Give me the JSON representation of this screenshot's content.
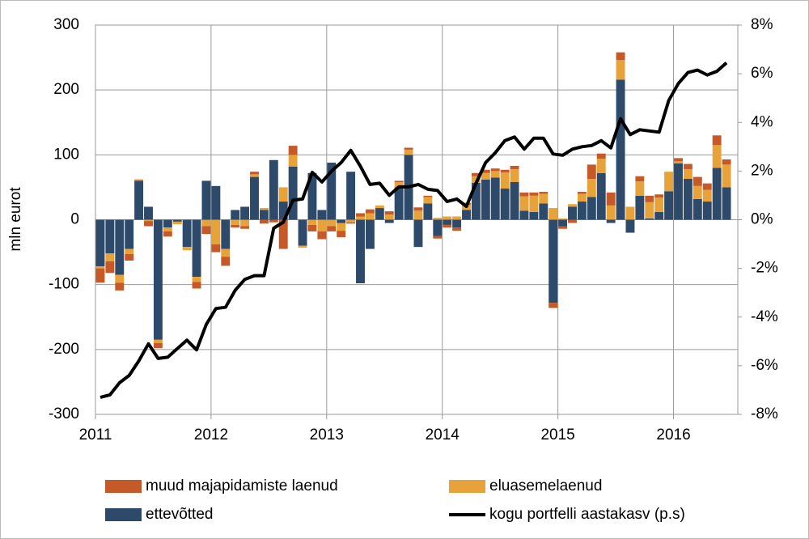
{
  "chart_data": {
    "type": "bar_line",
    "ylabel": "mln eurot",
    "categories": [
      "2011",
      null,
      null,
      null,
      null,
      null,
      null,
      null,
      null,
      null,
      null,
      null,
      "2012",
      null,
      null,
      null,
      null,
      null,
      null,
      null,
      null,
      null,
      null,
      null,
      "2013",
      null,
      null,
      null,
      null,
      null,
      null,
      null,
      null,
      null,
      null,
      null,
      "2014",
      null,
      null,
      null,
      null,
      null,
      null,
      null,
      null,
      null,
      null,
      null,
      "2015",
      null,
      null,
      null,
      null,
      null,
      null,
      null,
      null,
      null,
      null,
      null,
      "2016",
      null,
      null,
      null,
      null,
      null
    ],
    "ylim": [
      -300,
      300
    ],
    "yticks": [
      -300,
      -200,
      -100,
      0,
      100,
      200,
      300
    ],
    "y2lim": [
      -8,
      8
    ],
    "y2ticks": [
      {
        "value": -8,
        "label": "-8%"
      },
      {
        "value": -6,
        "label": "-6%"
      },
      {
        "value": -4,
        "label": "-4%"
      },
      {
        "value": -2,
        "label": "-2%"
      },
      {
        "value": 0,
        "label": "0%"
      },
      {
        "value": 2,
        "label": "2%"
      },
      {
        "value": 4,
        "label": "4%"
      },
      {
        "value": 6,
        "label": "6%"
      },
      {
        "value": 8,
        "label": "8%"
      }
    ],
    "grid": true,
    "legend": "bottom",
    "series": [
      {
        "name": "muud majapidamiste laenud",
        "color": "#c55a28",
        "kind": "bar",
        "values": [
          -22,
          -18,
          -12,
          -10,
          1,
          -8,
          -8,
          -8,
          0,
          0,
          -10,
          -12,
          -12,
          -14,
          -4,
          -4,
          4,
          -6,
          -4,
          -45,
          14,
          0,
          -10,
          -12,
          -8,
          -10,
          -2,
          5,
          6,
          0,
          5,
          2,
          3,
          5,
          2,
          -4,
          -4,
          -5,
          3,
          5,
          5,
          4,
          4,
          5,
          6,
          5,
          3,
          -8,
          -4,
          -5,
          3,
          22,
          8,
          20,
          12,
          0,
          8,
          10,
          5,
          0,
          5,
          8,
          14,
          10,
          15,
          8
        ]
      },
      {
        "name": "eluasemelaenud",
        "color": "#e8a23a",
        "kind": "bar",
        "values": [
          -3,
          -12,
          -12,
          -8,
          1,
          -2,
          -5,
          -6,
          -4,
          -5,
          -8,
          -10,
          -38,
          -12,
          -8,
          -10,
          4,
          3,
          0,
          22,
          18,
          -3,
          -8,
          -18,
          -10,
          -12,
          -4,
          5,
          10,
          4,
          8,
          8,
          8,
          14,
          10,
          3,
          5,
          5,
          8,
          10,
          10,
          10,
          25,
          20,
          22,
          25,
          15,
          18,
          2,
          4,
          12,
          28,
          22,
          22,
          30,
          20,
          22,
          25,
          22,
          30,
          3,
          15,
          20,
          18,
          35,
          35
        ]
      },
      {
        "name": "ettevõtted",
        "color": "#2e4a6b",
        "kind": "bar",
        "values": [
          -72,
          -52,
          -85,
          -45,
          60,
          20,
          -185,
          -12,
          -3,
          -42,
          -88,
          60,
          52,
          -45,
          15,
          20,
          66,
          15,
          92,
          28,
          82,
          -40,
          72,
          15,
          88,
          -5,
          74,
          -98,
          -45,
          18,
          -5,
          50,
          100,
          -42,
          25,
          -25,
          -8,
          -12,
          15,
          57,
          62,
          65,
          48,
          58,
          14,
          12,
          25,
          -128,
          -10,
          20,
          28,
          35,
          72,
          -5,
          216,
          -20,
          37,
          2,
          12,
          44,
          87,
          63,
          32,
          28,
          80,
          50
        ]
      },
      {
        "name": "kogu portfelli aastakasv (p.s)",
        "color": "#000000",
        "kind": "line",
        "axis": "y2",
        "values": [
          -7.3,
          -7.2,
          -6.7,
          -6.4,
          -5.8,
          -5.1,
          -5.7,
          -5.65,
          -5.3,
          -4.95,
          -5.35,
          -4.3,
          -3.65,
          -3.6,
          -2.9,
          -2.45,
          -2.3,
          -2.3,
          -0.35,
          -0.1,
          0.8,
          0.85,
          1.95,
          1.55,
          2.0,
          2.35,
          2.85,
          2.2,
          1.45,
          1.5,
          1.0,
          1.35,
          1.35,
          1.45,
          1.25,
          1.2,
          0.75,
          0.85,
          0.55,
          1.5,
          2.35,
          2.75,
          3.25,
          3.4,
          2.9,
          3.35,
          3.35,
          2.7,
          2.65,
          2.9,
          3.0,
          3.05,
          3.25,
          2.95,
          4.15,
          3.5,
          3.7,
          3.65,
          3.6,
          4.9,
          5.6,
          6.05,
          6.15,
          5.95,
          6.1,
          6.45
        ]
      }
    ]
  }
}
